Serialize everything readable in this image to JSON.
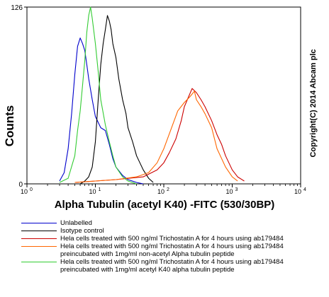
{
  "chart_data": {
    "type": "line",
    "xlabel": "Alpha Tubulin (acetyl K40) -FITC (530/30BP)",
    "ylabel": "Counts",
    "x_scale": "log",
    "xlim": [
      1,
      10000
    ],
    "ylim": [
      0,
      126
    ],
    "x_ticks": [
      {
        "value": 1,
        "base": "10",
        "exp": "0"
      },
      {
        "value": 10,
        "base": "10",
        "exp": "1"
      },
      {
        "value": 100,
        "base": "10",
        "exp": "2"
      },
      {
        "value": 1000,
        "base": "10",
        "exp": "3"
      },
      {
        "value": 10000,
        "base": "10",
        "exp": "4"
      }
    ],
    "y_ticks": [
      {
        "value": 0,
        "label": "0"
      },
      {
        "value": 126,
        "label": "126"
      }
    ],
    "annotation": "Copyright(C)  2014 Abcam plc",
    "series": [
      {
        "name": "Unlabelled",
        "color": "#0000cc",
        "x": [
          3,
          3.5,
          4,
          4.5,
          5,
          5.5,
          6,
          6.5,
          7,
          7.5,
          8,
          9,
          10,
          12,
          14,
          16,
          18,
          20,
          25,
          30,
          40,
          50
        ],
        "y": [
          2,
          8,
          25,
          50,
          78,
          98,
          104,
          100,
          95,
          85,
          75,
          60,
          48,
          40,
          38,
          28,
          18,
          12,
          6,
          3,
          1,
          0
        ]
      },
      {
        "name": "Isotype control",
        "color": "#000000",
        "x": [
          6,
          7,
          8,
          9,
          10,
          11,
          12,
          13,
          14,
          15,
          16,
          17,
          18,
          20,
          22,
          25,
          28,
          30,
          35,
          40,
          50,
          60,
          70
        ],
        "y": [
          0,
          2,
          5,
          12,
          30,
          60,
          85,
          100,
          110,
          120,
          116,
          110,
          100,
          90,
          75,
          60,
          50,
          40,
          30,
          20,
          10,
          4,
          1
        ]
      },
      {
        "name": "Hela cells treated with 500 ng/ml Trichostatin A for 4 hours using ab179484",
        "color": "#cc0000",
        "x": [
          5,
          10,
          20,
          50,
          80,
          100,
          120,
          150,
          180,
          200,
          230,
          260,
          300,
          350,
          400,
          500,
          600,
          700,
          800,
          1000,
          1200,
          1500
        ],
        "y": [
          1,
          2,
          3,
          5,
          10,
          15,
          22,
          32,
          45,
          55,
          62,
          68,
          65,
          60,
          55,
          45,
          35,
          28,
          20,
          10,
          5,
          2
        ]
      },
      {
        "name": "Hela cells treated with 500 ng/ml Trichostatin A for 4 hours using ab179484\npreincubated with 1mg/ml non-acetyl Alpha  tubulin peptide",
        "color": "#ff6600",
        "x": [
          5,
          10,
          20,
          40,
          60,
          80,
          100,
          130,
          160,
          200,
          240,
          280,
          300,
          350,
          400,
          500,
          600,
          800,
          1000,
          1200
        ],
        "y": [
          1,
          2,
          3,
          5,
          8,
          15,
          25,
          40,
          52,
          58,
          62,
          66,
          60,
          55,
          50,
          40,
          25,
          12,
          5,
          2
        ]
      },
      {
        "name": "Hela cells treated with 500 ng/ml Trichostatin A for 4 hours using ab179484\npreincubated with 1mg/ml acetyl K40 alpha  tubulin peptide",
        "color": "#33cc33",
        "x": [
          3,
          4,
          5,
          5.5,
          6,
          6.5,
          7,
          7.5,
          8,
          8.5,
          9,
          10,
          11,
          12,
          14,
          16,
          18,
          20,
          25,
          30,
          40
        ],
        "y": [
          1,
          4,
          20,
          38,
          52,
          70,
          88,
          108,
          120,
          126,
          118,
          100,
          80,
          60,
          42,
          30,
          20,
          12,
          5,
          2,
          0
        ]
      }
    ]
  }
}
